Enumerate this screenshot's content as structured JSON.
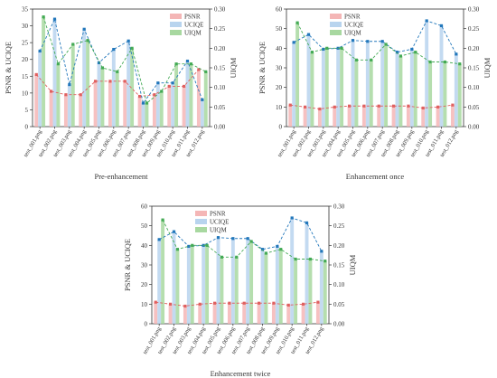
{
  "colors": {
    "psnr": "#f4b6b6",
    "uciqe": "#b8d4ee",
    "uiqm": "#a8d8a0",
    "psnr_line": "#e06060",
    "uciqe_line": "#2277bb",
    "uiqm_line": "#44aa55"
  },
  "chart_data": [
    {
      "type": "bar",
      "title": "",
      "xlabel": "Pre-enhancement",
      "ylabel": "PSNR & UCIQE",
      "y2label": "UIQM",
      "ylim": [
        0,
        35
      ],
      "y2lim": [
        0,
        0.3
      ],
      "yticks": [
        0,
        5,
        10,
        15,
        20,
        25,
        30,
        35
      ],
      "y2ticks": [
        "0.00",
        "0.05",
        "0.10",
        "0.15",
        "0.20",
        "0.25",
        "0.30"
      ],
      "legend": "top-right",
      "categories": [
        "test_001.png",
        "test_002.png",
        "test_003.png",
        "test_004.png",
        "test_005.png",
        "test_006.png",
        "test_007.png",
        "test_008.png",
        "test_009.png",
        "test_010.png",
        "test_011.png",
        "test_012.png"
      ],
      "series": [
        {
          "name": "PSNR",
          "axis": "left",
          "values": [
            15.5,
            10.5,
            9.5,
            9.5,
            13.5,
            13.5,
            13.5,
            9.0,
            9.5,
            12.0,
            12.0,
            17.0
          ]
        },
        {
          "name": "UCIQE",
          "axis": "left",
          "values": [
            22.5,
            32.0,
            12.5,
            29.0,
            19.0,
            23.0,
            25.5,
            7.0,
            13.0,
            13.0,
            19.5,
            8.0
          ]
        },
        {
          "name": "UIQM",
          "axis": "right",
          "values": [
            0.28,
            0.16,
            0.21,
            0.22,
            0.15,
            0.14,
            0.2,
            0.06,
            0.09,
            0.16,
            0.16,
            0.14
          ]
        }
      ]
    },
    {
      "type": "bar",
      "title": "",
      "xlabel": "Enhancement once",
      "ylabel": "PSNR & UCIQE",
      "y2label": "UIQM",
      "ylim": [
        0,
        60
      ],
      "y2lim": [
        0,
        0.3
      ],
      "yticks": [
        0,
        10,
        20,
        30,
        40,
        50,
        60
      ],
      "y2ticks": [
        "0.00",
        "0.05",
        "0.10",
        "0.15",
        "0.20",
        "0.25",
        "0.30"
      ],
      "legend": "top-left",
      "categories": [
        "test_001.png",
        "test_002.png",
        "test_003.png",
        "test_004.png",
        "test_005.png",
        "test_006.png",
        "test_007.png",
        "test_008.png",
        "test_009.png",
        "test_010.png",
        "test_011.png",
        "test_012.png"
      ],
      "series": [
        {
          "name": "PSNR",
          "axis": "left",
          "values": [
            11.0,
            10.0,
            9.0,
            10.0,
            10.5,
            10.5,
            10.5,
            10.5,
            10.5,
            9.5,
            10.0,
            11.0
          ]
        },
        {
          "name": "UCIQE",
          "axis": "left",
          "values": [
            43.0,
            47.0,
            39.5,
            40.0,
            44.0,
            43.5,
            43.5,
            38.0,
            39.5,
            54.0,
            51.5,
            37.0
          ]
        },
        {
          "name": "UIQM",
          "axis": "right",
          "values": [
            0.265,
            0.19,
            0.2,
            0.2,
            0.17,
            0.17,
            0.21,
            0.18,
            0.19,
            0.165,
            0.165,
            0.16
          ]
        }
      ]
    },
    {
      "type": "bar",
      "title": "",
      "xlabel": "Enhancement twice",
      "ylabel": "PSNR & UCIQE",
      "y2label": "UIQM",
      "ylim": [
        0,
        60
      ],
      "y2lim": [
        0,
        0.3
      ],
      "yticks": [
        0,
        10,
        20,
        30,
        40,
        50,
        60
      ],
      "y2ticks": [
        "0.00",
        "0.05",
        "0.10",
        "0.15",
        "0.20",
        "0.25",
        "0.30"
      ],
      "legend": "top-left",
      "categories": [
        "test_001.png",
        "test_002.png",
        "test_003.png",
        "test_004.png",
        "test_005.png",
        "test_006.png",
        "test_007.png",
        "test_008.png",
        "test_009.png",
        "test_010.png",
        "test_011.png",
        "test_012.png"
      ],
      "series": [
        {
          "name": "PSNR",
          "axis": "left",
          "values": [
            11.0,
            10.0,
            9.0,
            10.0,
            10.5,
            10.5,
            10.5,
            10.5,
            10.5,
            9.5,
            10.0,
            11.0
          ]
        },
        {
          "name": "UCIQE",
          "axis": "left",
          "values": [
            43.0,
            47.0,
            39.5,
            40.0,
            44.0,
            43.5,
            43.5,
            38.0,
            39.5,
            54.0,
            51.5,
            37.0
          ]
        },
        {
          "name": "UIQM",
          "axis": "right",
          "values": [
            0.265,
            0.19,
            0.2,
            0.2,
            0.17,
            0.17,
            0.21,
            0.18,
            0.19,
            0.165,
            0.165,
            0.16
          ]
        }
      ]
    }
  ]
}
